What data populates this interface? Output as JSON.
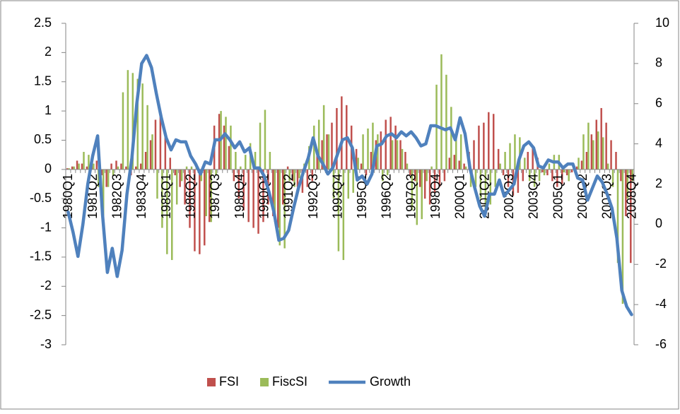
{
  "chart_data": {
    "type": "bar-line",
    "categories": [
      "1980Q1",
      null,
      null,
      null,
      null,
      "1981Q2",
      null,
      null,
      null,
      null,
      "1982Q3",
      null,
      null,
      null,
      null,
      "1983Q4",
      null,
      null,
      null,
      null,
      "1985Q1",
      null,
      null,
      null,
      null,
      "1986Q2",
      null,
      null,
      null,
      null,
      "1987Q3",
      null,
      null,
      null,
      null,
      "1988Q4",
      null,
      null,
      null,
      null,
      "1990Q1",
      null,
      null,
      null,
      null,
      "1991Q2",
      null,
      null,
      null,
      null,
      "1992Q3",
      null,
      null,
      null,
      null,
      "1993Q4",
      null,
      null,
      null,
      null,
      "1995Q1",
      null,
      null,
      null,
      null,
      "1996Q2",
      null,
      null,
      null,
      null,
      "1997Q3",
      null,
      null,
      null,
      null,
      "1998Q4",
      null,
      null,
      null,
      null,
      "2000Q1",
      null,
      null,
      null,
      null,
      "2001Q2",
      null,
      null,
      null,
      null,
      "2002Q3",
      null,
      null,
      null,
      null,
      "2003Q4",
      null,
      null,
      null,
      null,
      "2005Q1",
      null,
      null,
      null,
      null,
      "2006Q2",
      null,
      null,
      null,
      null,
      "2007Q3",
      null,
      null,
      null,
      null,
      "2008Q4"
    ],
    "series": [
      {
        "name": "FSI",
        "type": "bar",
        "color": "#c0504d",
        "values": [
          0.02,
          0.05,
          0.15,
          0.1,
          0.05,
          0.1,
          0.15,
          -0.1,
          -0.3,
          0.1,
          0.15,
          0.1,
          0.05,
          -0.1,
          0.05,
          0.1,
          0.3,
          0.5,
          0.85,
          0.9,
          0.6,
          0.2,
          -0.1,
          -0.3,
          -0.6,
          -1.0,
          -1.4,
          -1.45,
          -1.3,
          -0.9,
          0.75,
          0.95,
          0.75,
          0.4,
          -0.2,
          -0.5,
          -0.7,
          -0.9,
          -1.0,
          -1.1,
          -0.9,
          -0.6,
          -0.8,
          -1.0,
          -0.6,
          0.05,
          -0.2,
          -0.3,
          -0.4,
          -0.3,
          -0.2,
          0.3,
          0.5,
          0.6,
          0.8,
          1.05,
          1.25,
          1.1,
          0.75,
          0.35,
          0.1,
          -0.1,
          0.3,
          0.5,
          0.65,
          0.85,
          0.9,
          0.75,
          0.5,
          0.3,
          -0.1,
          -0.2,
          -0.3,
          -0.5,
          -0.6,
          -0.4,
          -0.3,
          -0.2,
          0.2,
          0.25,
          0.15,
          0.1,
          0.3,
          0.5,
          0.75,
          0.8,
          0.98,
          0.95,
          0.35,
          -0.1,
          -0.3,
          -0.45,
          -0.4,
          -0.2,
          0.3,
          0.4,
          0.2,
          -0.05,
          -0.1,
          -0.2,
          -0.3,
          -0.25,
          -0.1,
          -0.05,
          0.05,
          0.15,
          0.3,
          0.6,
          0.85,
          1.05,
          0.8,
          0.5,
          0.3,
          -0.2,
          -0.8,
          -1.6
        ]
      },
      {
        "name": "FiscSI",
        "type": "bar",
        "color": "#9bbb59",
        "values": [
          0.02,
          0.05,
          0.1,
          0.3,
          0.25,
          0.1,
          -0.3,
          -0.85,
          -0.3,
          -0.1,
          0.05,
          1.32,
          1.7,
          1.65,
          1.55,
          1.47,
          1.1,
          0.6,
          -0.5,
          -1.0,
          -1.45,
          -1.55,
          -0.6,
          -0.2,
          0.05,
          0.05,
          0.1,
          -0.2,
          -0.8,
          -0.9,
          -0.1,
          1.0,
          0.9,
          0.75,
          0.3,
          0.05,
          0.25,
          0.45,
          0.3,
          0.8,
          1.02,
          0.3,
          -0.9,
          -1.3,
          -1.35,
          -0.2,
          -0.3,
          -0.15,
          0.1,
          0.4,
          0.75,
          0.85,
          1.1,
          0.6,
          -0.5,
          -1.4,
          -1.55,
          -0.5,
          -0.4,
          0.2,
          0.6,
          0.7,
          0.8,
          0.6,
          -0.2,
          -0.1,
          0.5,
          0.5,
          0.35,
          0.1,
          -0.7,
          -0.95,
          -0.85,
          -0.2,
          0.05,
          1.45,
          1.97,
          1.62,
          1.07,
          0.55,
          0.6,
          0.05,
          -0.3,
          -0.3,
          -0.5,
          -0.7,
          -0.6,
          -0.3,
          0.1,
          0.3,
          0.45,
          0.6,
          0.55,
          0.2,
          -0.2,
          -0.3,
          -0.2,
          -0.1,
          0.1,
          0.25,
          0.25,
          -0.05,
          -0.2,
          0.05,
          0.2,
          0.6,
          0.8,
          0.5,
          0.65,
          0.55,
          0.1,
          -0.3,
          -1.6,
          -2.3,
          -0.5,
          -0.2
        ]
      },
      {
        "name": "Growth",
        "type": "line",
        "axis": "y2",
        "color": "#4f81bd",
        "values": [
          0.6,
          -0.4,
          -1.6,
          0.0,
          2.0,
          3.4,
          4.4,
          0.5,
          -2.4,
          -1.2,
          -2.6,
          -1.3,
          1.5,
          3.3,
          6.0,
          8.0,
          8.4,
          7.8,
          6.5,
          5.3,
          4.3,
          3.7,
          4.2,
          4.1,
          4.1,
          3.4,
          3.0,
          2.5,
          3.1,
          3.0,
          4.2,
          4.2,
          4.5,
          4.2,
          3.8,
          4.1,
          3.6,
          3.8,
          2.8,
          2.8,
          2.4,
          1.6,
          0.6,
          -0.8,
          -0.7,
          -0.3,
          0.8,
          1.8,
          2.6,
          3.3,
          4.3,
          3.4,
          3.0,
          2.5,
          2.8,
          3.5,
          4.2,
          4.3,
          3.8,
          2.2,
          2.4,
          2.0,
          2.5,
          3.9,
          4.0,
          4.4,
          4.5,
          4.3,
          4.6,
          4.4,
          4.6,
          4.3,
          3.9,
          4.0,
          4.9,
          4.9,
          4.8,
          4.7,
          4.8,
          4.2,
          5.3,
          4.5,
          2.8,
          1.8,
          0.9,
          0.4,
          1.5,
          1.5,
          2.2,
          1.4,
          1.7,
          2.0,
          3.2,
          3.9,
          4.1,
          3.8,
          2.9,
          2.8,
          3.2,
          3.1,
          3.1,
          2.8,
          3.0,
          3.0,
          2.3,
          2.2,
          1.2,
          1.8,
          2.4,
          2.1,
          1.5,
          0.8,
          -0.7,
          -3.3,
          -4.1,
          -4.5
        ]
      }
    ],
    "ylim": [
      -3,
      2.5
    ],
    "yticks": [
      -3,
      -2.5,
      -2,
      -1.5,
      -1,
      -0.5,
      0,
      0.5,
      1,
      1.5,
      2,
      2.5
    ],
    "y2lim": [
      -6,
      10
    ],
    "y2ticks": [
      -6,
      -4,
      -2,
      0,
      2,
      4,
      6,
      8,
      10
    ],
    "grid": false,
    "legend": "bottom"
  }
}
